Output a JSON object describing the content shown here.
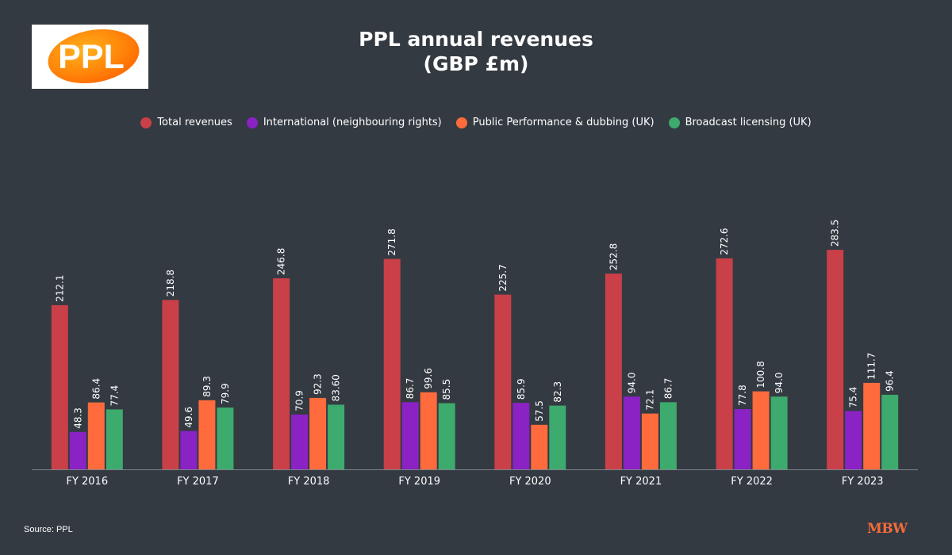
{
  "logo_text": "PPL",
  "chart_data": {
    "type": "bar",
    "title": "PPL annual revenues",
    "subtitle": "(GBP £m)",
    "xlabel": "",
    "ylabel": "",
    "ylim": [
      0,
      300
    ],
    "grid": false,
    "legend_position": "top",
    "categories": [
      "FY 2016",
      "FY 2017",
      "FY 2018",
      "FY 2019",
      "FY 2020",
      "FY 2021",
      "FY 2022",
      "FY 2023"
    ],
    "series": [
      {
        "name": "Total revenues",
        "color": "#c94048",
        "values": [
          212.1,
          218.8,
          246.8,
          271.8,
          225.7,
          252.8,
          272.6,
          283.5
        ],
        "labels": [
          "212.1",
          "218.8",
          "246.8",
          "271.8",
          "225.7",
          "252.8",
          "272.6",
          "283.5"
        ]
      },
      {
        "name": "International (neighbouring rights)",
        "color": "#8a22c4",
        "values": [
          48.3,
          49.6,
          70.9,
          86.7,
          85.9,
          94.0,
          77.8,
          75.4
        ],
        "labels": [
          "48.3",
          "49.6",
          "70.9",
          "86.7",
          "85.9",
          "94.0",
          "77.8",
          "75.4"
        ]
      },
      {
        "name": "Public Performance & dubbing (UK)",
        "color": "#ff6b3c",
        "values": [
          86.4,
          89.3,
          92.3,
          99.6,
          57.5,
          72.1,
          100.8,
          111.7
        ],
        "labels": [
          "86.4",
          "89.3",
          "92.3",
          "99.6",
          "57.5",
          "72.1",
          "100.8",
          "111.7"
        ]
      },
      {
        "name": "Broadcast licensing (UK)",
        "color": "#3daa6e",
        "values": [
          77.4,
          79.9,
          83.6,
          85.5,
          82.3,
          86.7,
          94.0,
          96.4
        ],
        "labels": [
          "77.4",
          "79.9",
          "83.60",
          "85.5",
          "82.3",
          "86.7",
          "94.0",
          "96.4"
        ]
      }
    ]
  },
  "footer": {
    "source": "Source: PPL",
    "brand": "MBW"
  }
}
